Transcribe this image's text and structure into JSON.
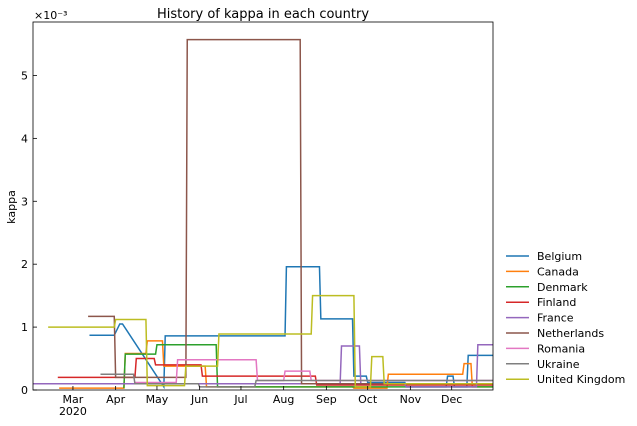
{
  "chart_data": {
    "type": "line",
    "title": "History of kappa in each country",
    "ylabel": "kappa",
    "xlabel": "",
    "y_scale_label": "×10⁻³",
    "y_multiplier": 0.001,
    "x_range": [
      "2020-02-01",
      "2020-12-31"
    ],
    "ylim": [
      0,
      5.85
    ],
    "grid": false,
    "legend_position": "right",
    "x_ticks": [
      {
        "date": "2020-03-01",
        "label": "Mar",
        "sublabel": "2020"
      },
      {
        "date": "2020-04-01",
        "label": "Apr",
        "sublabel": ""
      },
      {
        "date": "2020-05-01",
        "label": "May",
        "sublabel": ""
      },
      {
        "date": "2020-06-01",
        "label": "Jun",
        "sublabel": ""
      },
      {
        "date": "2020-07-01",
        "label": "Jul",
        "sublabel": ""
      },
      {
        "date": "2020-08-01",
        "label": "Aug",
        "sublabel": ""
      },
      {
        "date": "2020-09-01",
        "label": "Sep",
        "sublabel": ""
      },
      {
        "date": "2020-10-01",
        "label": "Oct",
        "sublabel": ""
      },
      {
        "date": "2020-11-01",
        "label": "Nov",
        "sublabel": ""
      },
      {
        "date": "2020-12-01",
        "label": "Dec",
        "sublabel": ""
      }
    ],
    "y_ticks": [
      0,
      1,
      2,
      3,
      4,
      5
    ],
    "series": [
      {
        "name": "Belgium",
        "color": "#1f77b4",
        "x": [
          "2020-03-13",
          "2020-03-31",
          "2020-04-04",
          "2020-04-06",
          "2020-05-06",
          "2020-05-07",
          "2020-08-02",
          "2020-08-03",
          "2020-08-27",
          "2020-08-28",
          "2020-09-20",
          "2020-09-21",
          "2020-09-30",
          "2020-10-01",
          "2020-10-28",
          "2020-10-29",
          "2020-11-27",
          "2020-11-28",
          "2020-12-02",
          "2020-12-03",
          "2020-12-12",
          "2020-12-13",
          "2020-12-31"
        ],
        "y": [
          0.87,
          0.87,
          1.05,
          1.05,
          0.05,
          0.86,
          0.86,
          1.96,
          1.96,
          1.13,
          1.13,
          0.22,
          0.22,
          0.12,
          0.12,
          0.05,
          0.05,
          0.22,
          0.22,
          0.05,
          0.05,
          0.55,
          0.55
        ]
      },
      {
        "name": "Canada",
        "color": "#ff7f0e",
        "x": [
          "2020-02-20",
          "2020-04-07",
          "2020-04-08",
          "2020-04-23",
          "2020-04-24",
          "2020-05-05",
          "2020-05-06",
          "2020-06-05",
          "2020-06-06",
          "2020-09-20",
          "2020-09-21",
          "2020-10-15",
          "2020-10-16",
          "2020-12-09",
          "2020-12-10",
          "2020-12-15",
          "2020-12-16",
          "2020-12-31"
        ],
        "y": [
          0.03,
          0.03,
          0.58,
          0.58,
          0.78,
          0.78,
          0.38,
          0.38,
          0.05,
          0.05,
          0.03,
          0.03,
          0.25,
          0.25,
          0.42,
          0.42,
          0.05,
          0.05
        ]
      },
      {
        "name": "Denmark",
        "color": "#2ca02c",
        "x": [
          "2020-04-07",
          "2020-04-08",
          "2020-04-30",
          "2020-05-01",
          "2020-06-13",
          "2020-06-14",
          "2020-12-31"
        ],
        "y": [
          0.03,
          0.57,
          0.57,
          0.72,
          0.72,
          0.05,
          0.05
        ]
      },
      {
        "name": "Finland",
        "color": "#d62728",
        "x": [
          "2020-02-19",
          "2020-04-15",
          "2020-04-16",
          "2020-04-29",
          "2020-04-30",
          "2020-05-24",
          "2020-05-25",
          "2020-06-02",
          "2020-06-03",
          "2020-08-24",
          "2020-08-25",
          "2020-12-31"
        ],
        "y": [
          0.2,
          0.2,
          0.5,
          0.5,
          0.4,
          0.4,
          0.4,
          0.4,
          0.22,
          0.22,
          0.08,
          0.08
        ]
      },
      {
        "name": "France",
        "color": "#9467bd",
        "x": [
          "2020-02-01",
          "2020-09-11",
          "2020-09-12",
          "2020-09-25",
          "2020-09-26",
          "2020-10-28",
          "2020-10-29",
          "2020-12-19",
          "2020-12-20",
          "2020-12-31"
        ],
        "y": [
          0.1,
          0.1,
          0.7,
          0.7,
          0.1,
          0.1,
          0.05,
          0.05,
          0.72,
          0.72
        ]
      },
      {
        "name": "Netherlands",
        "color": "#8c564b",
        "x": [
          "2020-03-12",
          "2020-03-31",
          "2020-04-01",
          "2020-05-22",
          "2020-05-23",
          "2020-08-13",
          "2020-08-14",
          "2020-12-31"
        ],
        "y": [
          1.17,
          1.17,
          0.2,
          0.2,
          5.57,
          5.57,
          0.1,
          0.1
        ]
      },
      {
        "name": "Romania",
        "color": "#e377c2",
        "x": [
          "2020-04-15",
          "2020-05-15",
          "2020-05-16",
          "2020-07-12",
          "2020-07-13",
          "2020-08-01",
          "2020-08-02",
          "2020-08-20",
          "2020-08-21",
          "2020-12-31"
        ],
        "y": [
          0.12,
          0.12,
          0.48,
          0.48,
          0.15,
          0.15,
          0.3,
          0.3,
          0.15,
          0.15
        ]
      },
      {
        "name": "Ukraine",
        "color": "#7f7f7f",
        "x": [
          "2020-03-21",
          "2020-04-14",
          "2020-04-15",
          "2020-05-31",
          "2020-06-01",
          "2020-07-11",
          "2020-07-12",
          "2020-12-31"
        ],
        "y": [
          0.25,
          0.25,
          0.1,
          0.1,
          0.05,
          0.05,
          0.15,
          0.15
        ]
      },
      {
        "name": "United Kingdom",
        "color": "#bcbd22",
        "x": [
          "2020-02-12",
          "2020-03-31",
          "2020-04-01",
          "2020-04-23",
          "2020-04-24",
          "2020-05-21",
          "2020-05-22",
          "2020-06-14",
          "2020-06-15",
          "2020-08-21",
          "2020-08-22",
          "2020-09-21",
          "2020-09-22",
          "2020-10-03",
          "2020-10-04",
          "2020-10-12",
          "2020-10-13",
          "2020-12-31"
        ],
        "y": [
          1.0,
          1.0,
          1.12,
          1.12,
          0.07,
          0.07,
          0.38,
          0.38,
          0.89,
          0.89,
          1.5,
          1.5,
          0.05,
          0.05,
          0.53,
          0.53,
          0.1,
          0.1
        ]
      }
    ]
  }
}
